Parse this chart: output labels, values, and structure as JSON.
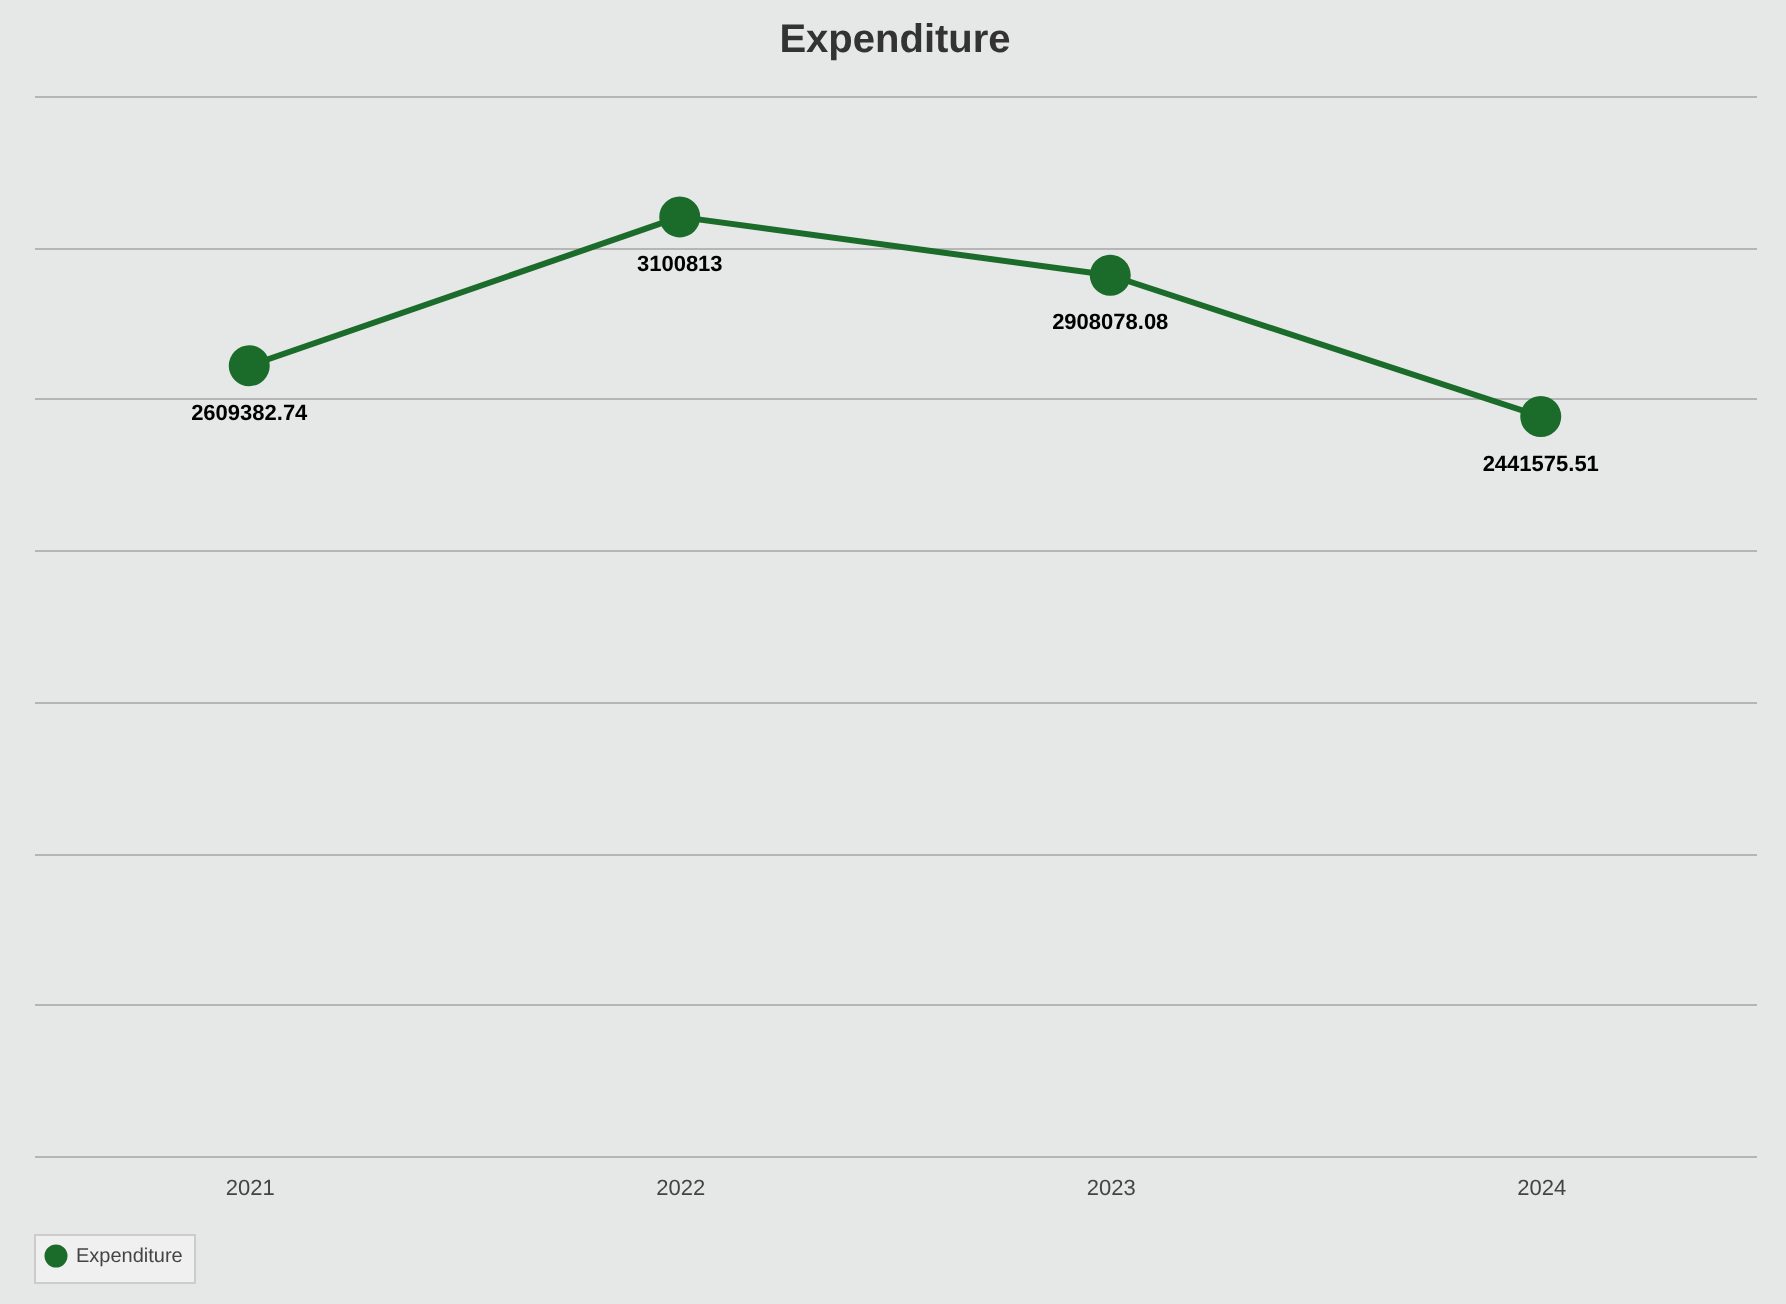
{
  "chart_data": {
    "type": "line",
    "title": "Expenditure",
    "categories": [
      "2021",
      "2022",
      "2023",
      "2024"
    ],
    "series": [
      {
        "name": "Expenditure",
        "color": "#1b6b2b",
        "values": [
          2609382.74,
          3100813,
          2908078.08,
          2441575.51
        ]
      }
    ],
    "ylim": [
      0,
      3500000
    ],
    "yticks": [
      {
        "value": 0,
        "label": null
      },
      {
        "value": 500000,
        "label": null
      },
      {
        "value": 1000000,
        "label": null
      },
      {
        "value": 1500000,
        "label": null
      },
      {
        "value": 2000000,
        "label": null
      },
      {
        "value": 2500000,
        "label": null
      },
      {
        "value": 3000000,
        "label": null
      },
      {
        "value": 3500000,
        "label": null
      }
    ],
    "tick_labels": "x",
    "grid": "y",
    "legend": "bottom",
    "marker": "circle",
    "line_style": "solid",
    "data_labels": true
  }
}
